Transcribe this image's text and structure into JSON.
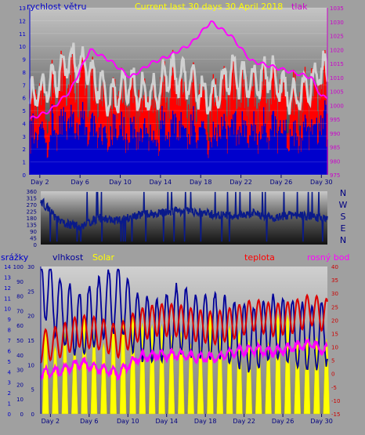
{
  "colors": {
    "wind": "#ff0000",
    "gust": "#d0d0d0",
    "wind_dark": "#0000cc",
    "pressure": "#ff00ff",
    "direction": "#0a1a8a",
    "humidity": "#000099",
    "temperature": "#dd0000",
    "dewpoint": "#ff00ff",
    "solar": "#ffff00",
    "axis_text_left": "#0000cc",
    "axis_text_right": "#cc00cc"
  },
  "top": {
    "left_label": "rychlost větru",
    "title": "Current last 30 days 30 April 2018",
    "right_label": "tlak",
    "left_ticks": [
      "0",
      "1",
      "2",
      "3",
      "4",
      "5",
      "6",
      "7",
      "8",
      "9",
      "10",
      "11",
      "12",
      "13"
    ],
    "right_ticks": [
      "975",
      "980",
      "985",
      "990",
      "995",
      "1000",
      "1005",
      "1010",
      "1015",
      "1020",
      "1025",
      "1030",
      "1035"
    ]
  },
  "middle": {
    "left_ticks": [
      "0",
      "45",
      "90",
      "135",
      "180",
      "225",
      "270",
      "315",
      "360"
    ],
    "compass": [
      "N",
      "W",
      "S",
      "E",
      "N"
    ]
  },
  "bottom": {
    "label_rain": "srážky",
    "label_humidity": "vlhkost",
    "label_solar": "Solar",
    "label_temp": "teplota",
    "label_dew": "rosný bod",
    "rain_ticks": [
      "0",
      "1",
      "2",
      "3",
      "4",
      "5",
      "6",
      "7",
      "8",
      "9",
      "10",
      "11",
      "12",
      "13",
      "14"
    ],
    "humidity_ticks": [
      "0",
      "10",
      "20",
      "30",
      "40",
      "50",
      "60",
      "70",
      "80",
      "90",
      "100"
    ],
    "solar_ticks": [
      "0",
      "5",
      "10",
      "15",
      "20",
      "25",
      "30"
    ],
    "temp_ticks": [
      "-15",
      "-10",
      "-5",
      "0",
      "5",
      "10",
      "15",
      "20",
      "25",
      "30",
      "35",
      "40"
    ]
  },
  "x_ticks": [
    "Day 2",
    "Day 6",
    "Day 10",
    "Day 14",
    "Day 18",
    "Day 22",
    "Day 26",
    "Day 30"
  ],
  "chart_data": [
    {
      "type": "line",
      "title": "Current last 30 days 30 April 2018",
      "xlabel": "",
      "ylabel": "rychlost větru",
      "y2label": "tlak",
      "ylim": [
        0,
        13
      ],
      "y2lim": [
        975,
        1035
      ],
      "days": [
        1,
        3,
        5,
        7,
        9,
        11,
        13,
        15,
        17,
        19,
        21,
        23,
        25,
        27,
        29,
        30
      ],
      "series": [
        {
          "name": "tlak",
          "axis": "right",
          "values": [
            995,
            998,
            1005,
            1020,
            1016,
            1010,
            1015,
            1018,
            1022,
            1030,
            1025,
            1016,
            1014,
            1012,
            1010,
            1003
          ]
        },
        {
          "name": "rychlost větru",
          "axis": "left",
          "values": [
            6,
            7,
            9,
            8,
            6,
            7,
            6,
            8,
            7,
            6,
            8,
            7,
            8,
            6,
            7,
            8
          ]
        }
      ]
    },
    {
      "type": "line",
      "xlabel": "",
      "ylabel": "",
      "ylim": [
        0,
        360
      ],
      "days": [
        1,
        3,
        5,
        7,
        9,
        11,
        13,
        15,
        17,
        19,
        21,
        23,
        25,
        27,
        29,
        30
      ],
      "series": [
        {
          "name": "",
          "values": [
            300,
            150,
            120,
            180,
            160,
            200,
            210,
            230,
            220,
            200,
            190,
            210,
            180,
            200,
            190,
            170
          ]
        }
      ]
    },
    {
      "type": "line",
      "xlabel": "",
      "ylabel": "",
      "temp_ylim": [
        -15,
        40
      ],
      "humidity_ylim": [
        0,
        100
      ],
      "days": [
        1,
        3,
        5,
        7,
        9,
        11,
        13,
        15,
        17,
        19,
        21,
        23,
        25,
        27,
        29,
        30
      ],
      "series": [
        {
          "name": "teplota",
          "axis": "temp",
          "values": [
            10,
            12,
            16,
            15,
            12,
            18,
            20,
            20,
            18,
            17,
            19,
            22,
            20,
            21,
            24,
            22
          ]
        },
        {
          "name": "rosný bod",
          "axis": "temp",
          "values": [
            0,
            1,
            4,
            2,
            0,
            6,
            7,
            7,
            6,
            6,
            8,
            9,
            8,
            10,
            11,
            9
          ]
        },
        {
          "name": "vlhkost",
          "axis": "humidity",
          "values": [
            90,
            70,
            60,
            70,
            80,
            60,
            55,
            65,
            60,
            60,
            55,
            50,
            60,
            55,
            50,
            55
          ]
        }
      ]
    }
  ]
}
